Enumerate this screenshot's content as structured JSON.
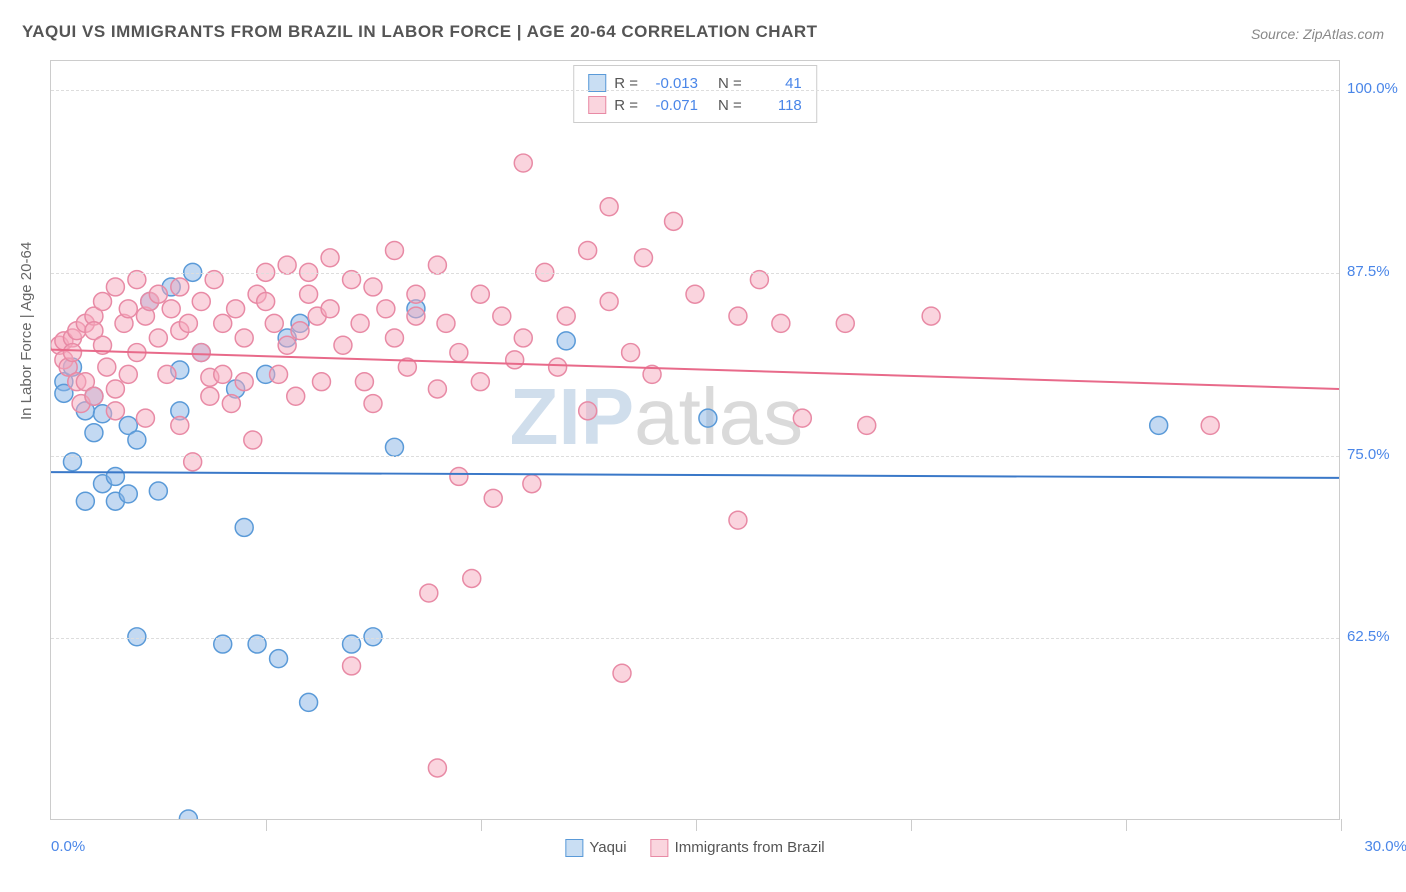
{
  "title": "YAQUI VS IMMIGRANTS FROM BRAZIL IN LABOR FORCE | AGE 20-64 CORRELATION CHART",
  "source": "Source: ZipAtlas.com",
  "ylabel": "In Labor Force | Age 20-64",
  "watermark": {
    "zip": "ZIP",
    "atlas": "atlas"
  },
  "chart": {
    "type": "scatter",
    "xlim": [
      0,
      30
    ],
    "ylim": [
      50,
      102
    ],
    "ytick_labels": [
      "62.5%",
      "75.0%",
      "87.5%",
      "100.0%"
    ],
    "ytick_values": [
      62.5,
      75.0,
      87.5,
      100.0
    ],
    "xtick_labels": {
      "left": "0.0%",
      "right": "30.0%"
    },
    "xtick_positions": [
      5,
      10,
      15,
      20,
      25,
      30
    ],
    "grid_color": "#dddddd",
    "border_color": "#cccccc",
    "axis_label_color": "#666666",
    "tick_label_color": "#4a86e8",
    "marker_radius": 9,
    "marker_stroke_width": 1.5,
    "trend_line_width": 2,
    "series": [
      {
        "name": "Yaqui",
        "fill": "rgba(135,180,230,0.5)",
        "stroke": "#5a9ad8",
        "swatch_fill": "#c9def3",
        "swatch_border": "#5a9ad8",
        "trend_color": "#3a78c8",
        "R": "-0.013",
        "N": "41",
        "trend": {
          "x1": 0,
          "y1": 73.8,
          "x2": 30,
          "y2": 73.4
        },
        "points": [
          [
            0.3,
            80.0
          ],
          [
            0.3,
            79.2
          ],
          [
            0.5,
            81.0
          ],
          [
            0.5,
            74.5
          ],
          [
            0.8,
            78.0
          ],
          [
            0.8,
            71.8
          ],
          [
            1.0,
            79.0
          ],
          [
            1.0,
            76.5
          ],
          [
            1.2,
            77.8
          ],
          [
            1.2,
            73.0
          ],
          [
            1.5,
            73.5
          ],
          [
            1.5,
            71.8
          ],
          [
            1.8,
            77.0
          ],
          [
            1.8,
            72.3
          ],
          [
            2.0,
            76.0
          ],
          [
            2.0,
            62.5
          ],
          [
            2.3,
            85.5
          ],
          [
            2.5,
            72.5
          ],
          [
            2.8,
            86.5
          ],
          [
            3.0,
            78.0
          ],
          [
            3.0,
            80.8
          ],
          [
            3.2,
            50.0
          ],
          [
            3.3,
            87.5
          ],
          [
            3.5,
            82.0
          ],
          [
            4.0,
            62.0
          ],
          [
            4.3,
            79.5
          ],
          [
            4.5,
            70.0
          ],
          [
            4.8,
            62.0
          ],
          [
            5.0,
            80.5
          ],
          [
            5.3,
            61.0
          ],
          [
            5.5,
            83.0
          ],
          [
            5.8,
            84.0
          ],
          [
            6.0,
            58.0
          ],
          [
            7.0,
            62.0
          ],
          [
            7.5,
            62.5
          ],
          [
            8.0,
            75.5
          ],
          [
            8.5,
            85.0
          ],
          [
            12.0,
            82.8
          ],
          [
            15.3,
            77.5
          ],
          [
            25.8,
            77.0
          ]
        ]
      },
      {
        "name": "Immigrants from Brazil",
        "fill": "rgba(245,170,190,0.5)",
        "stroke": "#e88aa5",
        "swatch_fill": "#fad5de",
        "swatch_border": "#e88aa5",
        "trend_color": "#e86a8a",
        "R": "-0.071",
        "N": "118",
        "trend": {
          "x1": 0,
          "y1": 82.2,
          "x2": 30,
          "y2": 79.5
        },
        "points": [
          [
            0.2,
            82.5
          ],
          [
            0.3,
            81.5
          ],
          [
            0.3,
            82.8
          ],
          [
            0.4,
            81.0
          ],
          [
            0.5,
            83.0
          ],
          [
            0.5,
            82.0
          ],
          [
            0.6,
            80.0
          ],
          [
            0.6,
            83.5
          ],
          [
            0.7,
            78.5
          ],
          [
            0.8,
            84.0
          ],
          [
            0.8,
            80.0
          ],
          [
            1.0,
            79.0
          ],
          [
            1.0,
            84.5
          ],
          [
            1.0,
            83.5
          ],
          [
            1.2,
            82.5
          ],
          [
            1.2,
            85.5
          ],
          [
            1.3,
            81.0
          ],
          [
            1.5,
            86.5
          ],
          [
            1.5,
            79.5
          ],
          [
            1.5,
            78.0
          ],
          [
            1.7,
            84.0
          ],
          [
            1.8,
            85.0
          ],
          [
            1.8,
            80.5
          ],
          [
            2.0,
            87.0
          ],
          [
            2.0,
            82.0
          ],
          [
            2.2,
            77.5
          ],
          [
            2.2,
            84.5
          ],
          [
            2.3,
            85.5
          ],
          [
            2.5,
            83.0
          ],
          [
            2.5,
            86.0
          ],
          [
            2.7,
            80.5
          ],
          [
            2.8,
            85.0
          ],
          [
            3.0,
            83.5
          ],
          [
            3.0,
            86.5
          ],
          [
            3.0,
            77.0
          ],
          [
            3.2,
            84.0
          ],
          [
            3.3,
            74.5
          ],
          [
            3.5,
            85.5
          ],
          [
            3.5,
            82.0
          ],
          [
            3.7,
            79.0
          ],
          [
            3.7,
            80.3
          ],
          [
            3.8,
            87.0
          ],
          [
            4.0,
            84.0
          ],
          [
            4.0,
            80.5
          ],
          [
            4.2,
            78.5
          ],
          [
            4.3,
            85.0
          ],
          [
            4.5,
            83.0
          ],
          [
            4.5,
            80.0
          ],
          [
            4.7,
            76.0
          ],
          [
            4.8,
            86.0
          ],
          [
            5.0,
            87.5
          ],
          [
            5.0,
            85.5
          ],
          [
            5.2,
            84.0
          ],
          [
            5.3,
            80.5
          ],
          [
            5.5,
            88.0
          ],
          [
            5.5,
            82.5
          ],
          [
            5.7,
            79.0
          ],
          [
            5.8,
            83.5
          ],
          [
            6.0,
            86.0
          ],
          [
            6.0,
            87.5
          ],
          [
            6.2,
            84.5
          ],
          [
            6.3,
            80.0
          ],
          [
            6.5,
            88.5
          ],
          [
            6.5,
            85.0
          ],
          [
            6.8,
            82.5
          ],
          [
            7.0,
            87.0
          ],
          [
            7.0,
            60.5
          ],
          [
            7.2,
            84.0
          ],
          [
            7.3,
            80.0
          ],
          [
            7.5,
            86.5
          ],
          [
            7.5,
            78.5
          ],
          [
            7.8,
            85.0
          ],
          [
            8.0,
            83.0
          ],
          [
            8.0,
            89.0
          ],
          [
            8.3,
            81.0
          ],
          [
            8.5,
            86.0
          ],
          [
            8.5,
            84.5
          ],
          [
            8.8,
            65.5
          ],
          [
            9.0,
            88.0
          ],
          [
            9.0,
            79.5
          ],
          [
            9.0,
            53.5
          ],
          [
            9.2,
            84.0
          ],
          [
            9.5,
            82.0
          ],
          [
            9.5,
            73.5
          ],
          [
            9.8,
            66.5
          ],
          [
            10.0,
            86.0
          ],
          [
            10.0,
            80.0
          ],
          [
            10.3,
            72.0
          ],
          [
            10.5,
            84.5
          ],
          [
            10.8,
            81.5
          ],
          [
            11.0,
            95.0
          ],
          [
            11.0,
            83.0
          ],
          [
            11.2,
            73.0
          ],
          [
            11.5,
            87.5
          ],
          [
            11.8,
            81.0
          ],
          [
            12.0,
            84.5
          ],
          [
            12.5,
            89.0
          ],
          [
            12.5,
            78.0
          ],
          [
            13.0,
            92.0
          ],
          [
            13.0,
            85.5
          ],
          [
            13.3,
            60.0
          ],
          [
            13.5,
            82.0
          ],
          [
            13.8,
            88.5
          ],
          [
            14.0,
            80.5
          ],
          [
            14.5,
            91.0
          ],
          [
            15.0,
            86.0
          ],
          [
            16.0,
            84.5
          ],
          [
            16.0,
            70.5
          ],
          [
            16.5,
            87.0
          ],
          [
            17.0,
            84.0
          ],
          [
            17.5,
            77.5
          ],
          [
            18.5,
            84.0
          ],
          [
            19.0,
            77.0
          ],
          [
            20.5,
            84.5
          ],
          [
            27.0,
            77.0
          ]
        ]
      }
    ]
  },
  "legend_bottom": [
    {
      "label": "Yaqui",
      "fill": "#c9def3",
      "border": "#5a9ad8"
    },
    {
      "label": "Immigrants from Brazil",
      "fill": "#fad5de",
      "border": "#e88aa5"
    }
  ]
}
